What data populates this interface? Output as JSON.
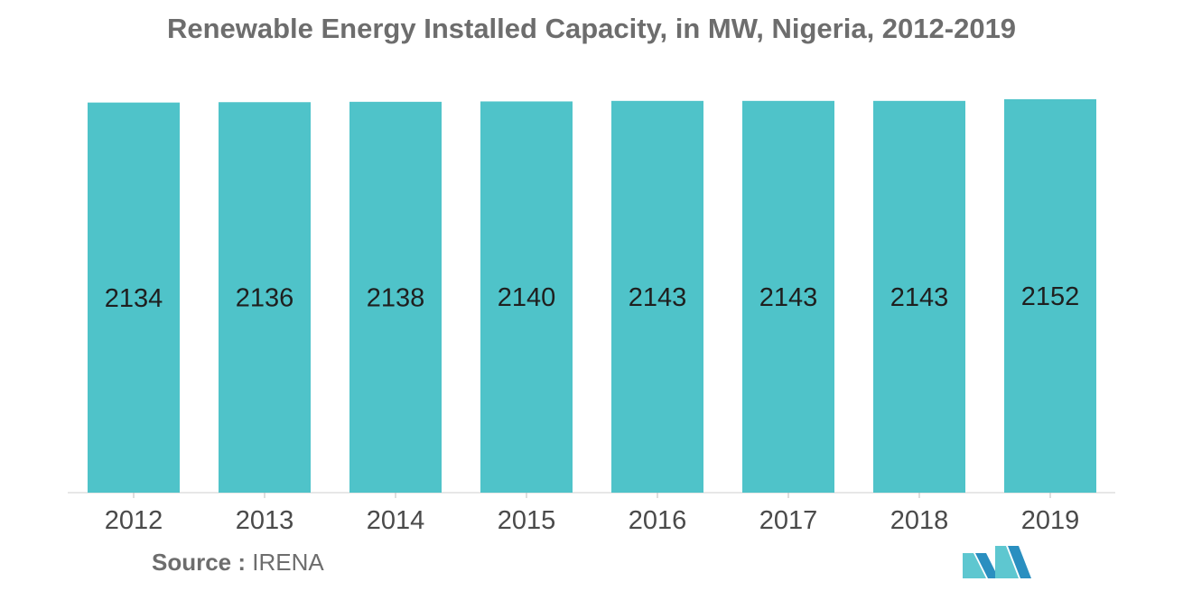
{
  "chart_data": {
    "type": "bar",
    "title": "Renewable Energy Installed Capacity, in MW, Nigeria, 2012-2019",
    "categories": [
      "2012",
      "2013",
      "2014",
      "2015",
      "2016",
      "2017",
      "2018",
      "2019"
    ],
    "values": [
      2134,
      2136,
      2138,
      2140,
      2143,
      2143,
      2143,
      2152
    ],
    "xlabel": "",
    "ylabel": "",
    "ylim": [
      0,
      2152
    ],
    "grid": false,
    "bar_color": "#4fc3c9"
  },
  "source": {
    "label": "Source :",
    "value": "IRENA"
  },
  "logo": {
    "icon": "mordor-intelligence-logo-icon",
    "colors": [
      "#5ec7d0",
      "#2a8fc0"
    ]
  }
}
